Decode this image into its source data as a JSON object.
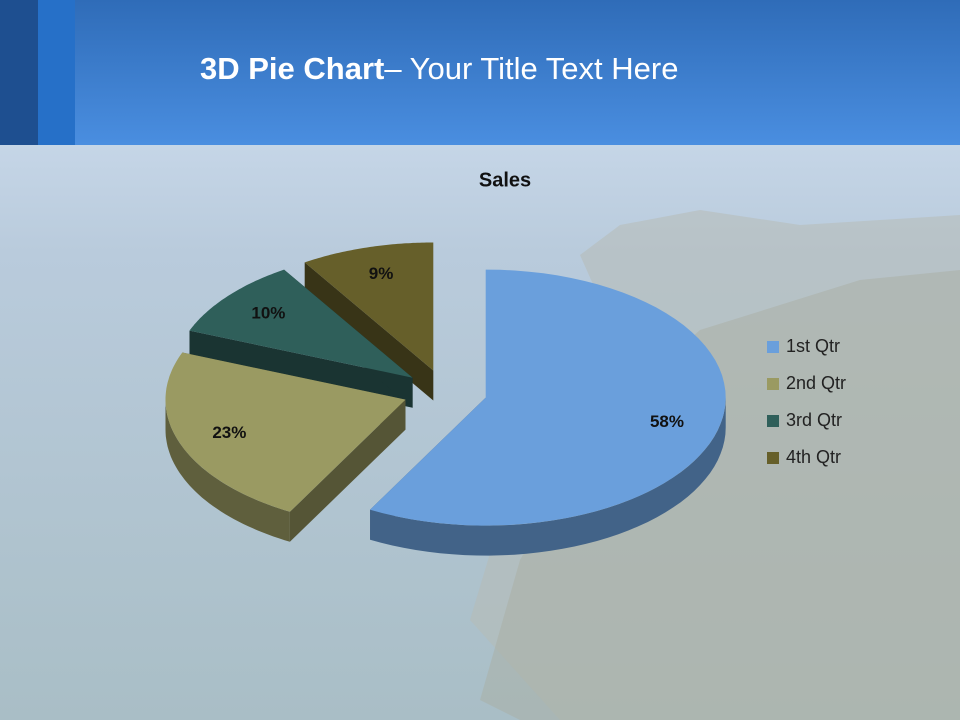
{
  "slide": {
    "title_bold": "3D Pie Chart",
    "title_rest": "– Your Title Text Here"
  },
  "chart_data": {
    "type": "pie3d",
    "title": "Sales",
    "categories": [
      "1st Qtr",
      "2nd Qtr",
      "3rd Qtr",
      "4th Qtr"
    ],
    "values": [
      58,
      23,
      10,
      9
    ],
    "value_labels": [
      "58%",
      "23%",
      "10%",
      "9%"
    ],
    "colors": [
      "#6a9fdc",
      "#9a9a62",
      "#2f5f5a",
      "#665f2a"
    ],
    "legend": "right"
  }
}
